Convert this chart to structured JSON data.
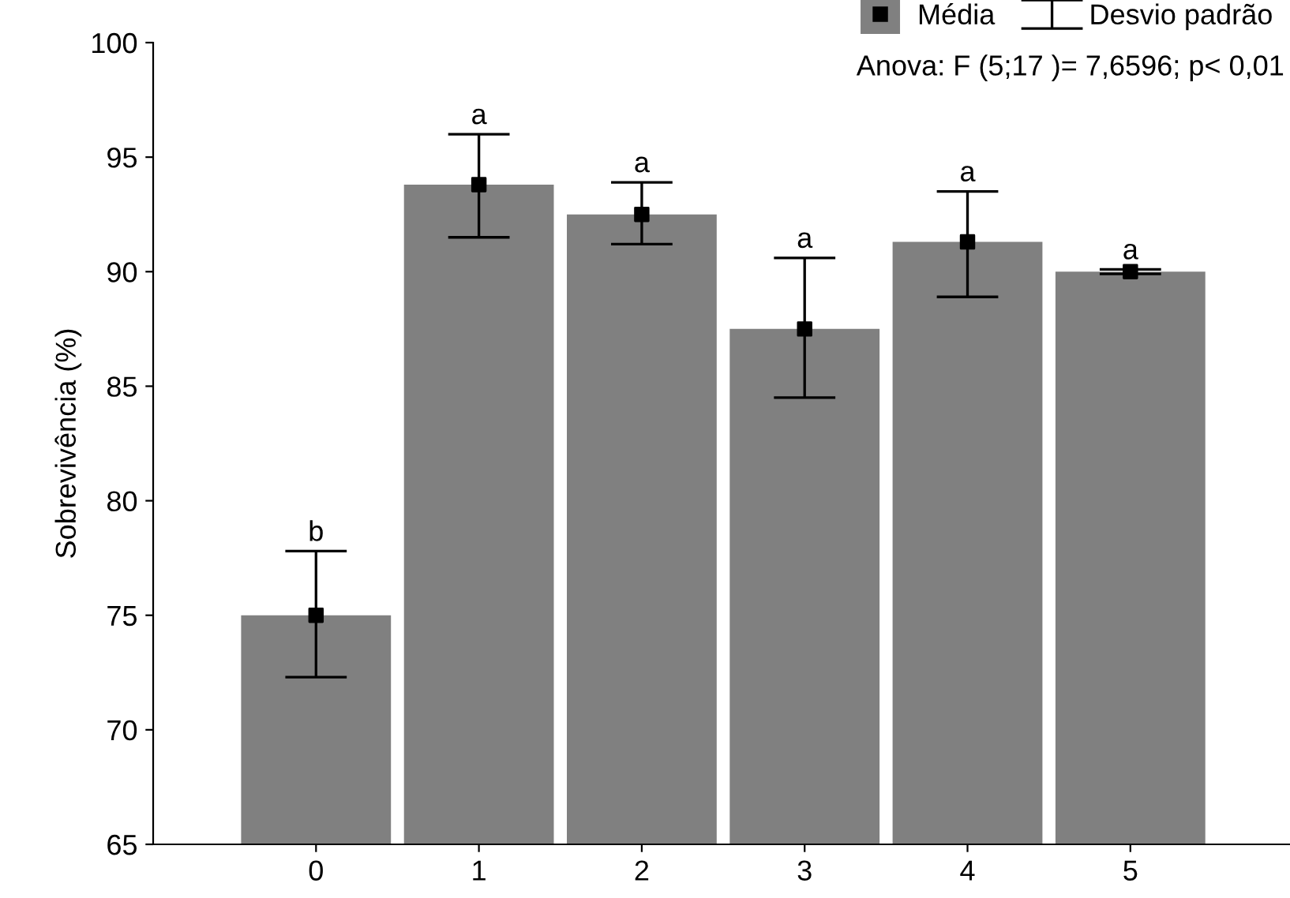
{
  "chart_data": {
    "type": "bar",
    "ylabel": "Sobrevivência (%)",
    "categories": [
      "0",
      "1",
      "2",
      "3",
      "4",
      "5"
    ],
    "ylim": [
      65,
      100
    ],
    "yticks": [
      65,
      70,
      75,
      80,
      85,
      90,
      95,
      100
    ],
    "grid": false,
    "legend": "top right",
    "series": [
      {
        "color": "#808080",
        "values": [
          75,
          93.8,
          92.5,
          87.5,
          91.3,
          90
        ],
        "errors": [
          [
            72.3,
            77.8
          ],
          [
            91.5,
            96.0
          ],
          [
            91.2,
            93.9
          ],
          [
            84.5,
            90.6
          ],
          [
            88.9,
            93.5
          ],
          [
            89.9,
            90.1
          ]
        ]
      },
      {
        "type": "scatter",
        "name": "Média",
        "color": "#000000",
        "marker": "square",
        "values": [
          75,
          93.8,
          92.5,
          87.5,
          91.3,
          90
        ]
      }
    ],
    "annotations": [
      "Desvio padrão",
      "Anova: F (5;17 )= 7,6596; p< 0,01",
      {
        "text": "b",
        "x": "0",
        "y": 77.8
      },
      {
        "text": "a",
        "x": "1",
        "y": 96.0
      },
      {
        "text": "a",
        "x": "2",
        "y": 93.9
      },
      {
        "text": "a",
        "x": "3",
        "y": 90.6
      },
      {
        "text": "a",
        "x": "4",
        "y": 93.5
      },
      {
        "text": "a",
        "x": "5",
        "y": 90.1
      }
    ]
  }
}
